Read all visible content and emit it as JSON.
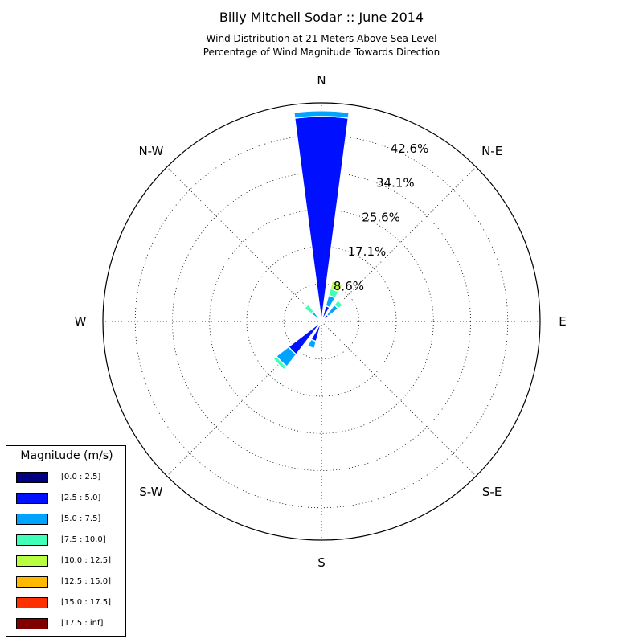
{
  "chart_data": {
    "type": "windrose",
    "title": "Billy Mitchell Sodar :: June 2014",
    "subtitle_lines": [
      "Wind Distribution at 21 Meters Above Sea Level",
      "Percentage of Wind Magnitude Towards Direction"
    ],
    "direction_labels": {
      "N": "N",
      "NE": "N-E",
      "E": "E",
      "SE": "S-E",
      "S": "S",
      "SW": "S-W",
      "W": "W",
      "NW": "N-W"
    },
    "radial_ticks": [
      "8.6%",
      "17.1%",
      "25.6%",
      "34.1%",
      "42.6%"
    ],
    "radial_tick_values": [
      8.6,
      17.1,
      25.6,
      34.1,
      42.6
    ],
    "rmax": 50,
    "legend_title": "Magnitude (m/s)",
    "legend_placement": "lower-left",
    "bins": [
      {
        "label": "[0.0 : 2.5]",
        "color": "#000080"
      },
      {
        "label": "[2.5 : 5.0]",
        "color": "#0010ff"
      },
      {
        "label": "[5.0 : 7.5]",
        "color": "#00a4ff"
      },
      {
        "label": "[7.5 : 10.0]",
        "color": "#40ffb7"
      },
      {
        "label": "[10.0 : 12.5]",
        "color": "#b7ff40"
      },
      {
        "label": "[12.5 : 15.0]",
        "color": "#ffb900"
      },
      {
        "label": "[15.0 : 17.5]",
        "color": "#ff3000"
      },
      {
        "label": "[17.5 : inf]",
        "color": "#800000"
      }
    ],
    "sectors": [
      {
        "direction_deg": 0,
        "width_deg": 15,
        "values": [
          0.3,
          46.6,
          1.3,
          0,
          0,
          0,
          0,
          0
        ]
      },
      {
        "direction_deg": 22.5,
        "width_deg": 15,
        "values": [
          0.5,
          3.2,
          2.5,
          1.6,
          1.8,
          0,
          0,
          0
        ]
      },
      {
        "direction_deg": 45,
        "width_deg": 15,
        "values": [
          0.5,
          1.5,
          2.8,
          1.3,
          0,
          0,
          0,
          0
        ]
      },
      {
        "direction_deg": 67.5,
        "width_deg": 15,
        "values": [
          0.4,
          0.9,
          0,
          0,
          0,
          0,
          0,
          0
        ]
      },
      {
        "direction_deg": 202.5,
        "width_deg": 15,
        "values": [
          0.5,
          4.2,
          1.7,
          0,
          0,
          0,
          0,
          0
        ]
      },
      {
        "direction_deg": 225,
        "width_deg": 15,
        "values": [
          0.5,
          9.0,
          3.5,
          0.9,
          0,
          0,
          0,
          0
        ]
      },
      {
        "direction_deg": 315,
        "width_deg": 15,
        "values": [
          0.7,
          0.6,
          1.6,
          2.0,
          0,
          0,
          0,
          0
        ]
      }
    ]
  }
}
